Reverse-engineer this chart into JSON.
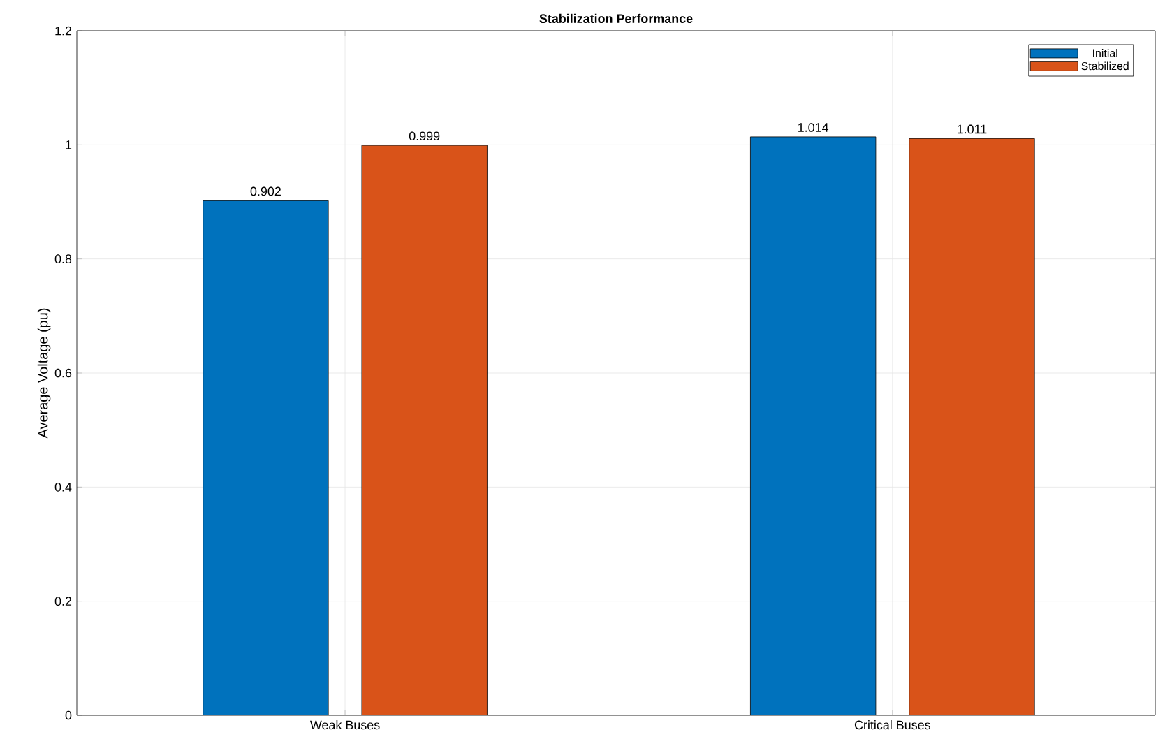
{
  "chart_data": {
    "type": "bar",
    "title": "Stabilization Performance",
    "ylabel": "Average Voltage (pu)",
    "categories": [
      "Weak Buses",
      "Critical Buses"
    ],
    "series": [
      {
        "name": "Initial",
        "color": "#0072bd",
        "values": [
          0.902,
          1.014
        ]
      },
      {
        "name": "Stabilized",
        "color": "#d95319",
        "values": [
          0.999,
          1.011
        ]
      }
    ],
    "ylim": [
      0,
      1.2
    ],
    "yticks": [
      0,
      0.2,
      0.4,
      0.6,
      0.8,
      1,
      1.2
    ],
    "grid": true,
    "legend": "top right",
    "data_labels": true
  }
}
